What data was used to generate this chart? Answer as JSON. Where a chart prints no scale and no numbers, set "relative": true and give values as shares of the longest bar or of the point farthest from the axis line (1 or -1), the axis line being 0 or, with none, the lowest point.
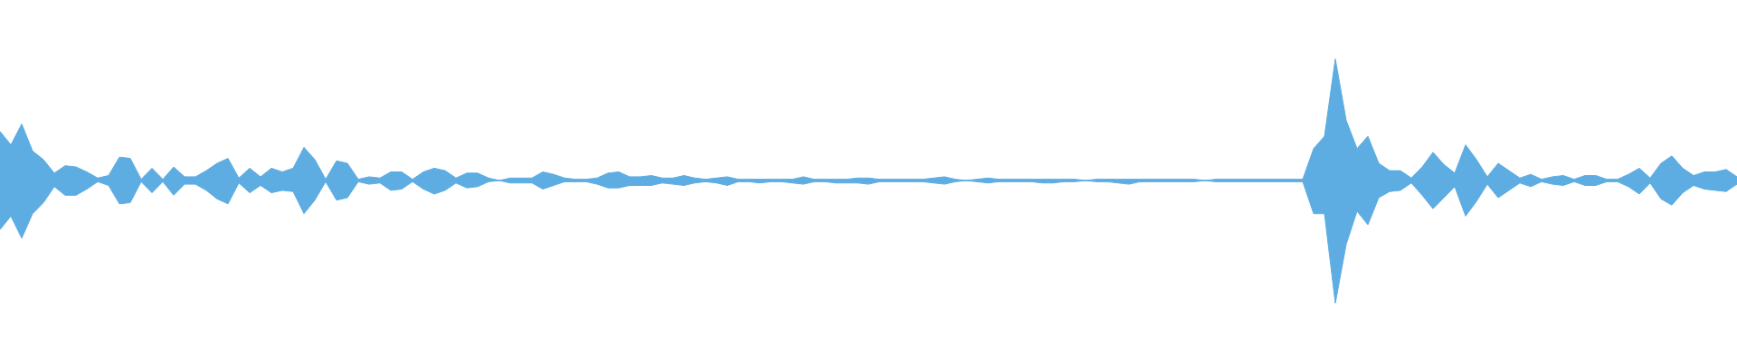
{
  "chart_data": {
    "type": "area",
    "relative": true,
    "categories": [
      null,
      null,
      null,
      null,
      null,
      null,
      null,
      null,
      null,
      null,
      null,
      null,
      null,
      null,
      null,
      null,
      null,
      null,
      null,
      null,
      null,
      null,
      null,
      null,
      null,
      null,
      null,
      null,
      null,
      null,
      null,
      null,
      null,
      null,
      null,
      null,
      null,
      null,
      null,
      null,
      null,
      null,
      null,
      null,
      null,
      null,
      null,
      null,
      null,
      null,
      null,
      null,
      null,
      null,
      null,
      null,
      null,
      null,
      null,
      null,
      null,
      null,
      null,
      null,
      null,
      null,
      null,
      null,
      null,
      null,
      null,
      null,
      null,
      null,
      null,
      null,
      null,
      null,
      null,
      null,
      null,
      null,
      null,
      null,
      null,
      null,
      null,
      null,
      null,
      null,
      null,
      null,
      null,
      null,
      null,
      null,
      null,
      null,
      null,
      null,
      null,
      null,
      null,
      null,
      null,
      null,
      null,
      null,
      null,
      null,
      null,
      null,
      null,
      null,
      null,
      null,
      null,
      null,
      null,
      null,
      null,
      null,
      null,
      null,
      null,
      null,
      null,
      null,
      null,
      null,
      null,
      null,
      null,
      null,
      null,
      null,
      null,
      null,
      null,
      null,
      null,
      null,
      null,
      null,
      null,
      null,
      null,
      null,
      null,
      null,
      null,
      null,
      null,
      null,
      null,
      null,
      null,
      null,
      null,
      null,
      null
    ],
    "series": [
      {
        "color": "#5dade2",
        "values": [
          0.4,
          0.29,
          0.46,
          0.24,
          0.17,
          0.06,
          0.12,
          0.11,
          0.07,
          0.02,
          0.04,
          0.19,
          0.18,
          0.01,
          0.1,
          0.01,
          0.11,
          0.03,
          0.03,
          0.08,
          0.14,
          0.18,
          0.02,
          0.1,
          0.03,
          0.1,
          0.07,
          0.1,
          0.27,
          0.17,
          0.01,
          0.16,
          0.14,
          0.01,
          0.03,
          0.02,
          0.07,
          0.07,
          0.01,
          0.07,
          0.1,
          0.08,
          0.02,
          0.06,
          0.06,
          0.02,
          0,
          0.02,
          0.02,
          0.02,
          0.07,
          0.05,
          0.02,
          0.01,
          0.01,
          0.02,
          0.06,
          0.07,
          0.03,
          0.03,
          0.04,
          0.02,
          0.02,
          0.04,
          0.02,
          0.01,
          0.02,
          0.03,
          0.01,
          0.01,
          0.01,
          0.01,
          0.01,
          0.01,
          0.03,
          0.01,
          0.01,
          0.01,
          0.01,
          0.02,
          0.02,
          0.01,
          0.01,
          0.01,
          0.01,
          0.01,
          0.02,
          0.03,
          0.01,
          0,
          0.01,
          0.02,
          0.01,
          0.01,
          0.01,
          0.01,
          0.01,
          0.01,
          0.01,
          0.01,
          0,
          0.01,
          0.01,
          0.01,
          0.01,
          0.01,
          0.01,
          0.01,
          0.01,
          0.01,
          0.01,
          0,
          0.01,
          0.01,
          0.01,
          0.01,
          0.01,
          0.01,
          0.01,
          0.01,
          0.01,
          0.26,
          0.36,
          0.99,
          0.49,
          0.26,
          0.36,
          0.14,
          0.08,
          0.08,
          0.02,
          0.11,
          0.23,
          0.13,
          0.06,
          0.29,
          0.17,
          0.03,
          0.14,
          0.08,
          0.02,
          0.05,
          0.01,
          0.03,
          0.04,
          0.01,
          0.04,
          0.04,
          0.01,
          0.01,
          0.05,
          0.1,
          0.02,
          0.14,
          0.2,
          0.1,
          0.04,
          0.07,
          0.07,
          0.09,
          0.03
        ]
      },
      {
        "color": "#5dade3",
        "values": [
          -0.4,
          -0.29,
          -0.47,
          -0.27,
          -0.18,
          -0.05,
          -0.12,
          -0.12,
          -0.07,
          -0.01,
          -0.04,
          -0.19,
          -0.18,
          -0.01,
          -0.1,
          -0.01,
          -0.12,
          -0.03,
          -0.03,
          -0.08,
          -0.15,
          -0.19,
          -0.02,
          -0.1,
          -0.04,
          -0.1,
          -0.08,
          -0.09,
          -0.27,
          -0.16,
          -0.01,
          -0.16,
          -0.14,
          -0.01,
          -0.03,
          -0.02,
          -0.08,
          -0.07,
          -0.01,
          -0.07,
          -0.11,
          -0.08,
          -0.02,
          -0.06,
          -0.05,
          -0.01,
          0,
          -0.02,
          -0.02,
          -0.02,
          -0.07,
          -0.04,
          -0.01,
          -0.01,
          -0.01,
          -0.03,
          -0.06,
          -0.06,
          -0.04,
          -0.04,
          -0.04,
          -0.02,
          -0.03,
          -0.04,
          -0.02,
          -0.01,
          -0.02,
          -0.04,
          -0.01,
          -0.01,
          -0.02,
          -0.01,
          -0.01,
          -0.02,
          -0.03,
          -0.01,
          -0.01,
          -0.02,
          -0.02,
          -0.02,
          -0.03,
          -0.01,
          -0.01,
          -0.01,
          -0.01,
          -0.01,
          -0.02,
          -0.03,
          -0.01,
          0,
          -0.01,
          -0.02,
          -0.01,
          -0.01,
          -0.01,
          -0.01,
          -0.02,
          -0.02,
          -0.01,
          -0.01,
          0,
          -0.01,
          -0.01,
          -0.02,
          -0.03,
          -0.01,
          -0.01,
          -0.01,
          -0.01,
          -0.01,
          -0.01,
          0,
          -0.01,
          -0.01,
          -0.01,
          -0.01,
          -0.01,
          -0.01,
          -0.01,
          -0.01,
          -0.01,
          -0.27,
          -0.27,
          -1,
          -0.52,
          -0.25,
          -0.36,
          -0.14,
          -0.09,
          -0.08,
          -0.02,
          -0.12,
          -0.23,
          -0.14,
          -0.05,
          -0.29,
          -0.17,
          -0.03,
          -0.14,
          -0.08,
          -0.02,
          -0.05,
          -0.01,
          -0.03,
          -0.04,
          -0.01,
          -0.04,
          -0.04,
          -0.01,
          -0.01,
          -0.05,
          -0.11,
          -0.02,
          -0.15,
          -0.2,
          -0.1,
          -0.04,
          -0.07,
          -0.08,
          -0.09,
          -0.03
        ]
      }
    ],
    "ref_lines": [
      {
        "axis": "y",
        "value": 0,
        "color": "#5dade2"
      }
    ]
  }
}
